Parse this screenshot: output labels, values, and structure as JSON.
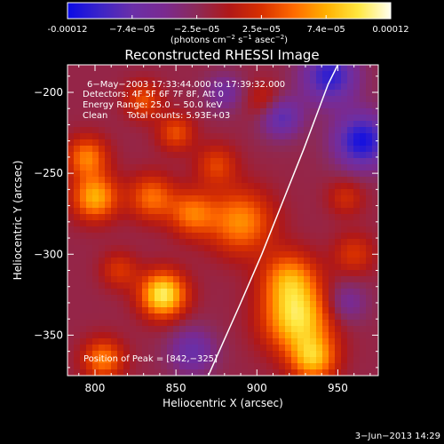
{
  "colorbar": {
    "ticks": [
      "-0.00012",
      "−7.4e−05",
      "−2.5e−05",
      "2.5e−05",
      "7.4e−05",
      "0.00012"
    ],
    "unit_label": "(photons cm−2 s−1 asec−2)",
    "unit_parts": {
      "a": "(photons cm",
      "e1": "−2",
      "b": " s",
      "e2": "−1",
      "c": " asec",
      "e3": "−2",
      "d": ")"
    },
    "stops": [
      "#0a0ae6",
      "#3b24c8",
      "#6a2fa8",
      "#7a2a90",
      "#8c2a58",
      "#b01818",
      "#d83000",
      "#ff6a00",
      "#ffb000",
      "#ffe840",
      "#fffff0"
    ]
  },
  "chart_data": {
    "type": "heatmap",
    "title": "Reconstructed RHESSI Image",
    "xlabel": "Heliocentric X (arcsec)",
    "ylabel": "Heliocentric Y (arcsec)",
    "xlim": [
      783,
      975
    ],
    "ylim": [
      -375,
      -183
    ],
    "x_ticks": [
      800,
      850,
      900,
      950
    ],
    "y_ticks": [
      -200,
      -250,
      -300,
      -350
    ],
    "value_range": [
      -0.00012,
      0.00012
    ],
    "grid": false,
    "limb_curve": [
      [
        870,
        -375
      ],
      [
        890,
        -330
      ],
      [
        903,
        -300
      ],
      [
        915,
        -270
      ],
      [
        929,
        -235
      ],
      [
        944,
        -195
      ],
      [
        950,
        -183
      ]
    ],
    "annotations": {
      "line1": "6−May−2003 17:33:44.000 to 17:39:32.000",
      "line2": "Detectors: 4F 5F 6F 7F 8F, Att 0",
      "line3": "Energy Range: 25.0 − 50.0 keV",
      "line4_a": "Clean",
      "line4_b": "Total counts: 5.93E+03",
      "peak": "Position of Peak = [842,−325]"
    },
    "sources": [
      {
        "x": 842,
        "y": -325,
        "amp": 1.0,
        "sigma": 10
      },
      {
        "x": 925,
        "y": -340,
        "amp": 0.9,
        "sigma": 15
      },
      {
        "x": 920,
        "y": -315,
        "amp": 0.6,
        "sigma": 12
      },
      {
        "x": 935,
        "y": -365,
        "amp": 0.7,
        "sigma": 10
      },
      {
        "x": 890,
        "y": -280,
        "amp": 0.65,
        "sigma": 14
      },
      {
        "x": 860,
        "y": -275,
        "amp": 0.55,
        "sigma": 10
      },
      {
        "x": 835,
        "y": -265,
        "amp": 0.55,
        "sigma": 10
      },
      {
        "x": 800,
        "y": -265,
        "amp": 0.75,
        "sigma": 10
      },
      {
        "x": 795,
        "y": -240,
        "amp": 0.6,
        "sigma": 9
      },
      {
        "x": 805,
        "y": -365,
        "amp": 0.6,
        "sigma": 9
      },
      {
        "x": 850,
        "y": -225,
        "amp": 0.45,
        "sigma": 8
      },
      {
        "x": 830,
        "y": -205,
        "amp": 0.45,
        "sigma": 8
      },
      {
        "x": 815,
        "y": -310,
        "amp": 0.35,
        "sigma": 8
      },
      {
        "x": 875,
        "y": -245,
        "amp": 0.4,
        "sigma": 9
      },
      {
        "x": 960,
        "y": -300,
        "amp": 0.35,
        "sigma": 9
      },
      {
        "x": 905,
        "y": -205,
        "amp": 0.3,
        "sigma": 8
      },
      {
        "x": 955,
        "y": -265,
        "amp": 0.3,
        "sigma": 8
      },
      {
        "x": 965,
        "y": -230,
        "amp": -0.8,
        "sigma": 12
      },
      {
        "x": 915,
        "y": -215,
        "amp": -0.55,
        "sigma": 9
      },
      {
        "x": 945,
        "y": -190,
        "amp": -0.7,
        "sigma": 12
      },
      {
        "x": 860,
        "y": -360,
        "amp": -0.45,
        "sigma": 10
      },
      {
        "x": 955,
        "y": -330,
        "amp": -0.35,
        "sigma": 9
      },
      {
        "x": 880,
        "y": -200,
        "amp": -0.35,
        "sigma": 8
      }
    ]
  },
  "footer": {
    "date": "3−Jun−2013 14:29"
  }
}
